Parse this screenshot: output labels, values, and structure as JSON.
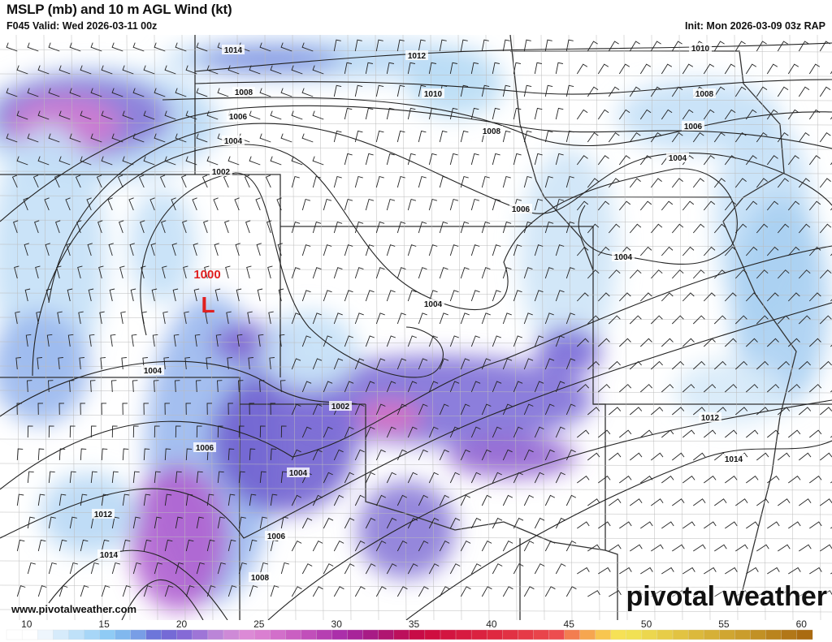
{
  "header": {
    "title": "MSLP (mb) and 10 m AGL Wind (kt)",
    "valid": "F045 Valid: Wed 2026-03-11 00z",
    "init": "Init: Mon 2026-03-09 03z RAP"
  },
  "map": {
    "low_center": {
      "symbol": "L",
      "pressure": "1000",
      "color": "#e02020"
    },
    "isobar_labels": [
      "1014",
      "1012",
      "1010",
      "1010",
      "1008",
      "1008",
      "1008",
      "1006",
      "1006",
      "1006",
      "1004",
      "1004",
      "1004",
      "1004",
      "1004",
      "1002",
      "1002",
      "1004",
      "1006",
      "1012",
      "1014",
      "1012",
      "1014",
      "1006",
      "1008"
    ]
  },
  "footer": {
    "website": "www.pivotalweather.com",
    "logo": "pivotal weather"
  },
  "colorbar": {
    "ticks": [
      "10",
      "15",
      "20",
      "25",
      "30",
      "35",
      "40",
      "45",
      "50",
      "55",
      "60"
    ],
    "units": "kt"
  }
}
